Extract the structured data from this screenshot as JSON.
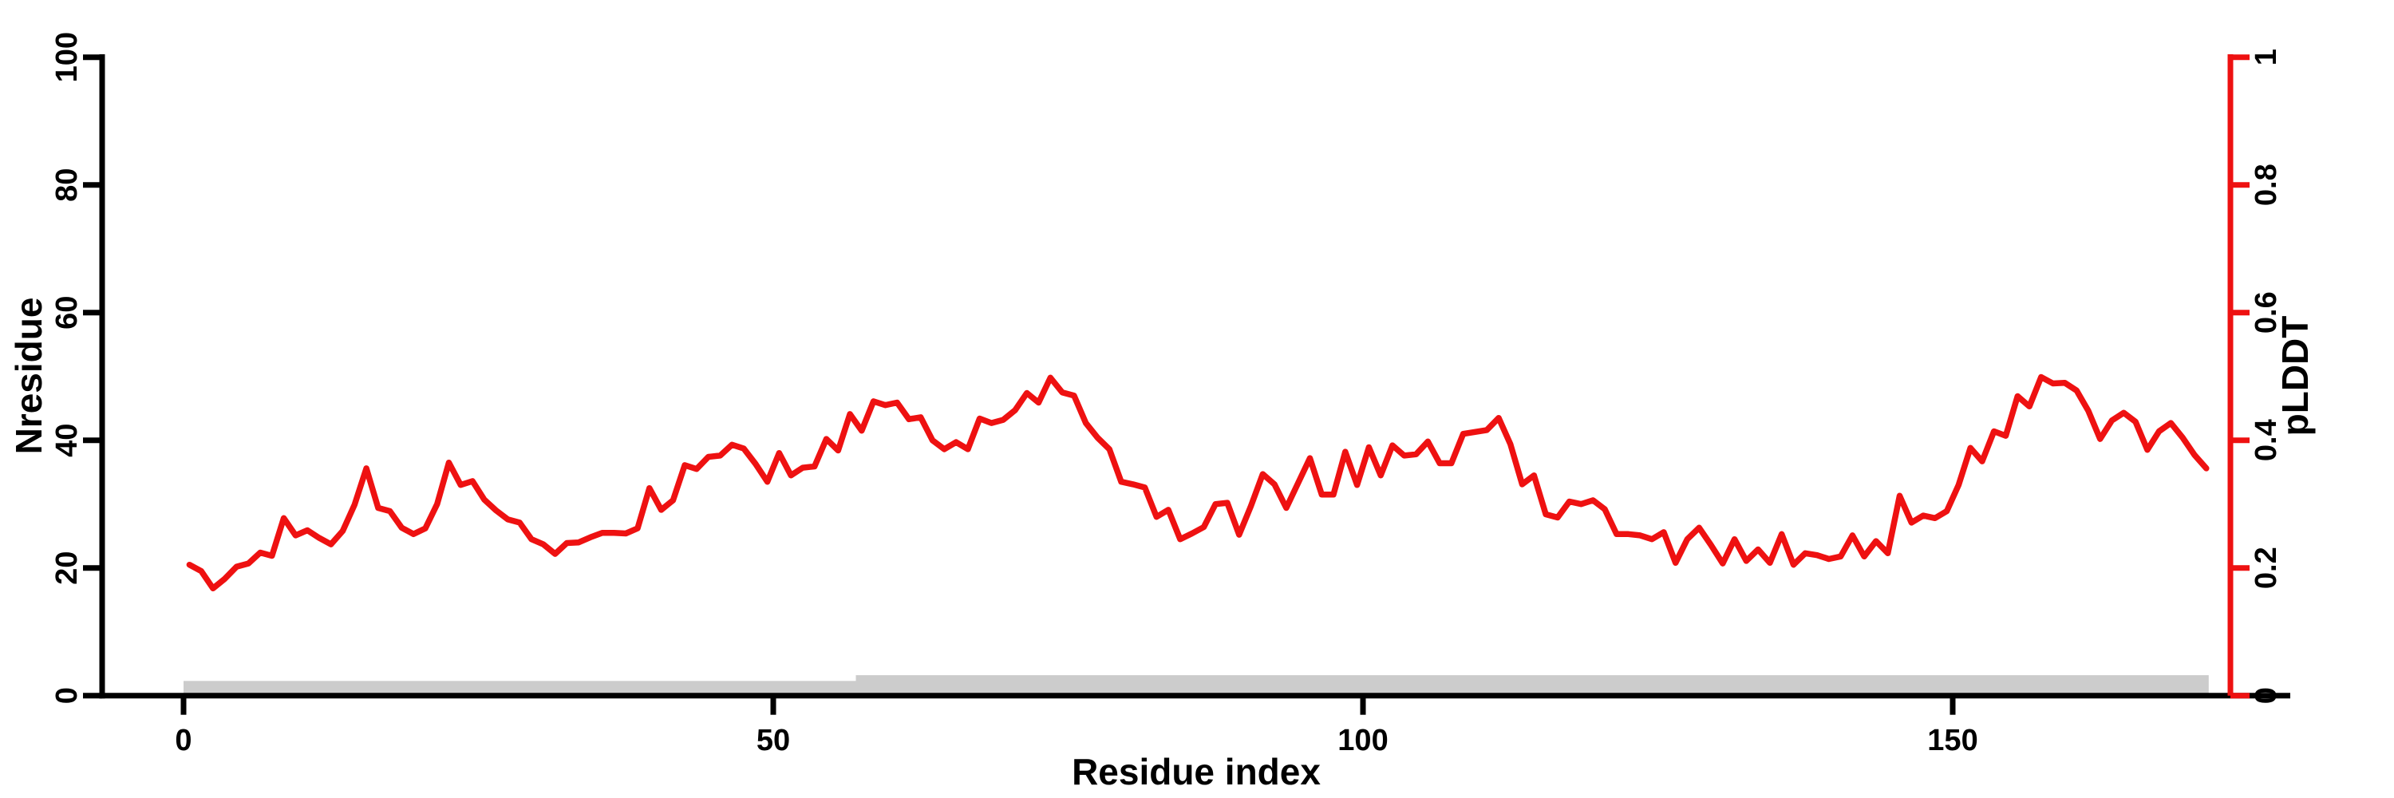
{
  "page": {
    "background": "#ffffff"
  },
  "chart_data": {
    "type": "line",
    "title": "",
    "xlabel": "Residue index",
    "ylabel_left": "Nresidue",
    "ylabel_right": "pLDDT",
    "grid": false,
    "legend": "none",
    "x_axis": {
      "min": 0,
      "max": 172,
      "ticks": [
        0,
        50,
        100,
        150
      ]
    },
    "y_axis_left": {
      "min": 0,
      "max": 100,
      "ticks": [
        0,
        20,
        40,
        60,
        80,
        100
      ]
    },
    "y_axis_right": {
      "min": 0,
      "max": 1,
      "ticks": [
        "0",
        "0.2",
        "0.4",
        "0.6",
        "0.8",
        "1"
      ]
    },
    "colors": {
      "line": "#ee1111",
      "bar": "#cccccc",
      "axis": "#000000",
      "right_axis": "#ee1111"
    },
    "series": [
      {
        "name": "pLDDT",
        "type": "line",
        "yaxis": "right",
        "color": "#ee1111",
        "x_start": 1,
        "x_step": 1,
        "values": [
          0.205,
          0.195,
          0.168,
          0.183,
          0.202,
          0.207,
          0.224,
          0.219,
          0.278,
          0.251,
          0.259,
          0.247,
          0.237,
          0.258,
          0.299,
          0.356,
          0.294,
          0.289,
          0.263,
          0.253,
          0.262,
          0.3,
          0.365,
          0.33,
          0.336,
          0.307,
          0.29,
          0.276,
          0.271,
          0.245,
          0.237,
          0.222,
          0.239,
          0.24,
          0.248,
          0.255,
          0.255,
          0.254,
          0.262,
          0.325,
          0.291,
          0.306,
          0.361,
          0.355,
          0.374,
          0.376,
          0.393,
          0.387,
          0.363,
          0.335,
          0.38,
          0.345,
          0.357,
          0.359,
          0.402,
          0.384,
          0.441,
          0.415,
          0.461,
          0.455,
          0.459,
          0.433,
          0.436,
          0.4,
          0.386,
          0.397,
          0.386,
          0.434,
          0.427,
          0.432,
          0.447,
          0.474,
          0.459,
          0.498,
          0.475,
          0.47,
          0.427,
          0.404,
          0.386,
          0.335,
          0.331,
          0.326,
          0.28,
          0.291,
          0.245,
          0.254,
          0.264,
          0.3,
          0.302,
          0.252,
          0.297,
          0.347,
          0.331,
          0.294,
          0.333,
          0.372,
          0.315,
          0.315,
          0.382,
          0.33,
          0.389,
          0.345,
          0.392,
          0.376,
          0.378,
          0.398,
          0.364,
          0.364,
          0.41,
          0.413,
          0.416,
          0.435,
          0.394,
          0.331,
          0.345,
          0.284,
          0.279,
          0.304,
          0.3,
          0.306,
          0.292,
          0.253,
          0.253,
          0.251,
          0.245,
          0.256,
          0.208,
          0.245,
          0.263,
          0.236,
          0.207,
          0.245,
          0.211,
          0.229,
          0.208,
          0.253,
          0.205,
          0.223,
          0.22,
          0.214,
          0.218,
          0.251,
          0.218,
          0.242,
          0.223,
          0.313,
          0.271,
          0.282,
          0.278,
          0.289,
          0.33,
          0.388,
          0.367,
          0.414,
          0.407,
          0.469,
          0.453,
          0.499,
          0.489,
          0.49,
          0.478,
          0.446,
          0.402,
          0.431,
          0.443,
          0.429,
          0.385,
          0.414,
          0.427,
          0.404,
          0.377,
          0.356
        ]
      },
      {
        "name": "Nresidue",
        "type": "bar-segments",
        "yaxis": "left",
        "color": "#cccccc",
        "segments": [
          {
            "x_from": 0,
            "x_to": 57,
            "value": 2.3
          },
          {
            "x_from": 57,
            "x_to": 171.7,
            "value": 3.2
          }
        ]
      }
    ]
  }
}
